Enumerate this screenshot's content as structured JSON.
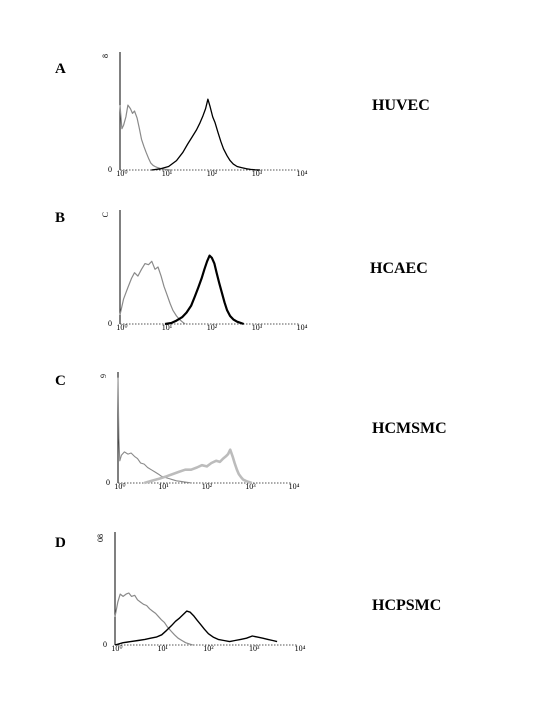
{
  "chart_data": [
    {
      "type": "line",
      "panel": "A",
      "cell_label": "HUVEC",
      "xscale": "log",
      "xlim": [
        1,
        10000
      ],
      "x_tick_labels": [
        "10⁰",
        "10¹",
        "10²",
        "10³",
        "10⁴"
      ],
      "y_max_label": "8",
      "y_zero_label": "0",
      "ylim": [
        0,
        100
      ],
      "series": [
        {
          "color": "#8a8a8a",
          "stroke": 1.2,
          "x": [
            1,
            1.1,
            1.2,
            1.35,
            1.5,
            1.7,
            1.9,
            2.1,
            2.4,
            2.7,
            3.0,
            3.4,
            3.8,
            4.3,
            4.8,
            5.4,
            6.0,
            6.8,
            7.6,
            8.5,
            9.5,
            11,
            12.5,
            14
          ],
          "y": [
            55,
            35,
            38,
            45,
            55,
            52,
            48,
            50,
            44,
            35,
            26,
            20,
            15,
            10,
            6,
            4,
            3,
            2,
            1.5,
            1,
            0.7,
            0.4,
            0.2,
            0
          ]
        },
        {
          "color": "#000000",
          "stroke": 1.3,
          "x": [
            5,
            8,
            12,
            18,
            25,
            32,
            40,
            50,
            60,
            70,
            80,
            90,
            100,
            115,
            130,
            150,
            175,
            200,
            240,
            280,
            330,
            400,
            500,
            650,
            800,
            1000,
            1300
          ],
          "y": [
            0,
            1,
            3,
            8,
            15,
            22,
            28,
            34,
            40,
            46,
            52,
            60,
            54,
            45,
            40,
            32,
            24,
            18,
            12,
            8,
            5,
            3,
            2,
            1,
            0.5,
            0.2,
            0
          ]
        }
      ]
    },
    {
      "type": "line",
      "panel": "B",
      "cell_label": "HCAEC",
      "xscale": "log",
      "xlim": [
        1,
        10000
      ],
      "x_tick_labels": [
        "10⁰",
        "10¹",
        "10²",
        "10³",
        "10⁴"
      ],
      "y_max_label": "C",
      "y_zero_label": "0",
      "ylim": [
        0,
        100
      ],
      "series": [
        {
          "color": "#8a8a8a",
          "stroke": 1.2,
          "x": [
            1,
            1.2,
            1.5,
            1.8,
            2.1,
            2.5,
            3.0,
            3.6,
            4.3,
            5.1,
            6.0,
            7.0,
            8.2,
            9.5,
            11,
            13,
            15,
            18,
            21,
            24,
            28
          ],
          "y": [
            8,
            22,
            32,
            40,
            45,
            42,
            48,
            53,
            52,
            55,
            48,
            50,
            42,
            33,
            26,
            18,
            12,
            7,
            4,
            2,
            0
          ]
        },
        {
          "color": "#000000",
          "stroke": 2.2,
          "x": [
            10,
            14,
            18,
            24,
            30,
            38,
            46,
            55,
            65,
            75,
            86,
            98,
            110,
            125,
            140,
            160,
            185,
            210,
            240,
            280,
            330,
            400,
            480,
            560
          ],
          "y": [
            0,
            1,
            3,
            6,
            10,
            16,
            24,
            32,
            40,
            48,
            55,
            60,
            58,
            53,
            45,
            36,
            27,
            19,
            12,
            7,
            4,
            2,
            1,
            0
          ]
        }
      ]
    },
    {
      "type": "line",
      "panel": "C",
      "cell_label": "HCMSMC",
      "xscale": "log",
      "xlim": [
        1,
        10000
      ],
      "x_tick_labels": [
        "10⁰",
        "10¹",
        "10²",
        "10³",
        "10⁴"
      ],
      "y_max_label": "9",
      "y_zero_label": "0",
      "ylim": [
        0,
        100
      ],
      "series": [
        {
          "color": "#8a8a8a",
          "stroke": 1.1,
          "x": [
            1,
            1.05,
            1.1,
            1.2,
            1.4,
            1.7,
            2.0,
            2.4,
            2.8,
            3.3,
            4.0,
            4.8,
            5.8,
            7.0,
            8.5,
            10,
            12,
            15,
            18,
            22,
            27,
            33,
            40,
            50
          ],
          "y": [
            95,
            40,
            20,
            25,
            28,
            26,
            27,
            24,
            22,
            18,
            17,
            14,
            12,
            10,
            8,
            6,
            5,
            4,
            3,
            2,
            1.5,
            1,
            0.5,
            0
          ]
        },
        {
          "color": "#bcbcbc",
          "stroke": 2.6,
          "x": [
            4,
            6,
            9,
            13,
            18,
            25,
            35,
            48,
            65,
            85,
            110,
            140,
            180,
            220,
            260,
            300,
            340,
            380,
            430,
            480,
            540,
            600,
            680,
            760,
            860,
            1000,
            1200
          ],
          "y": [
            0,
            2,
            4,
            6,
            8,
            10,
            12,
            12,
            14,
            16,
            15,
            18,
            20,
            19,
            22,
            24,
            26,
            30,
            24,
            18,
            12,
            8,
            5,
            3,
            2,
            1,
            0
          ]
        }
      ]
    },
    {
      "type": "line",
      "panel": "D",
      "cell_label": "HCPSMC",
      "xscale": "log",
      "xlim": [
        1,
        10000
      ],
      "x_tick_labels": [
        "10⁰",
        "10¹",
        "10²",
        "10³",
        "10⁴"
      ],
      "y_max_label": "08",
      "y_zero_label": "0",
      "ylim": [
        0,
        100
      ],
      "series": [
        {
          "color": "#8a8a8a",
          "stroke": 1.2,
          "x": [
            1,
            1.15,
            1.3,
            1.5,
            1.75,
            2.0,
            2.3,
            2.7,
            3.1,
            3.6,
            4.2,
            4.9,
            5.7,
            6.6,
            7.7,
            9.0,
            10.5,
            12,
            14,
            17,
            20,
            24,
            29,
            35,
            42,
            50
          ],
          "y": [
            25,
            38,
            45,
            43,
            45,
            46,
            43,
            44,
            40,
            38,
            36,
            35,
            32,
            30,
            28,
            25,
            22,
            20,
            16,
            12,
            9,
            6,
            4,
            2,
            1,
            0
          ]
        },
        {
          "color": "#000000",
          "stroke": 1.4,
          "x": [
            1,
            1.5,
            2.2,
            3.2,
            4.5,
            6.0,
            8.0,
            10.5,
            13.5,
            17,
            21,
            26,
            31,
            37,
            44,
            52,
            62,
            75,
            90,
            110,
            140,
            180,
            240,
            320,
            420,
            560,
            750,
            1000,
            1300,
            1700,
            2200,
            2800,
            3500
          ],
          "y": [
            0,
            2,
            3,
            4,
            5,
            6,
            7,
            9,
            13,
            17,
            21,
            24,
            27,
            30,
            29,
            26,
            22,
            18,
            14,
            10,
            7,
            5,
            4,
            3,
            4,
            5,
            6,
            8,
            7,
            6,
            5,
            4,
            3
          ]
        }
      ]
    }
  ]
}
